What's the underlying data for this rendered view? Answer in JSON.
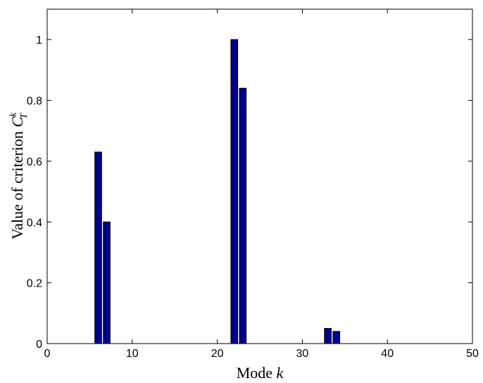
{
  "chart_data": {
    "type": "bar",
    "x": [
      6,
      7,
      22,
      23,
      33,
      34
    ],
    "values": [
      0.63,
      0.4,
      1.0,
      0.84,
      0.05,
      0.04
    ],
    "xlabel": "Mode",
    "xlabel_var": "k",
    "ylabel": "Value of criterion",
    "ylabel_var": "C",
    "ylabel_sup": "k",
    "ylabel_sub": "T",
    "xlim": [
      0,
      50
    ],
    "ylim": [
      0,
      1.1
    ],
    "xticks": [
      0,
      10,
      20,
      30,
      40,
      50
    ],
    "yticks": [
      0,
      0.2,
      0.4,
      0.6,
      0.8,
      1
    ],
    "xtick_labels": [
      "0",
      "10",
      "20",
      "30",
      "40",
      "50"
    ],
    "ytick_labels": [
      "0",
      "0.2",
      "0.4",
      "0.6",
      "0.8",
      "1"
    ],
    "bar_color": "#00008b",
    "grid": false
  }
}
